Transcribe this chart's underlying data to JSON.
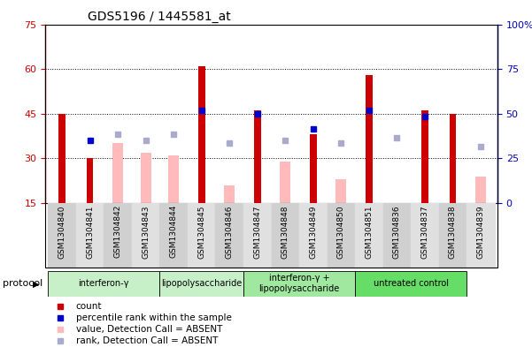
{
  "title": "GDS5196 / 1445581_at",
  "samples": [
    "GSM1304840",
    "GSM1304841",
    "GSM1304842",
    "GSM1304843",
    "GSM1304844",
    "GSM1304845",
    "GSM1304846",
    "GSM1304847",
    "GSM1304848",
    "GSM1304849",
    "GSM1304850",
    "GSM1304851",
    "GSM1304836",
    "GSM1304837",
    "GSM1304838",
    "GSM1304839"
  ],
  "red_bars": [
    45,
    30,
    null,
    null,
    null,
    61,
    null,
    46,
    null,
    38,
    null,
    58,
    null,
    46,
    45,
    null
  ],
  "pink_bars": [
    null,
    null,
    35,
    32,
    31,
    null,
    21,
    null,
    29,
    null,
    23,
    null,
    null,
    null,
    null,
    24
  ],
  "blue_squares": [
    null,
    36,
    null,
    null,
    null,
    46,
    null,
    45,
    null,
    40,
    null,
    46,
    null,
    44,
    null,
    null
  ],
  "lavender_squares": [
    null,
    null,
    38,
    36,
    38,
    null,
    35,
    null,
    36,
    null,
    35,
    null,
    37,
    null,
    null,
    34
  ],
  "ylim_left": [
    15,
    75
  ],
  "ylim_right": [
    0,
    100
  ],
  "yticks_left": [
    15,
    30,
    45,
    60,
    75
  ],
  "yticks_right": [
    0,
    25,
    50,
    75,
    100
  ],
  "ytick_right_labels": [
    "0",
    "25",
    "50",
    "75",
    "100%"
  ],
  "dotted_lines": [
    30,
    45,
    60
  ],
  "protocol_groups": [
    {
      "label": "interferon-γ",
      "start": 0,
      "end": 3,
      "color": "#c8f0c8"
    },
    {
      "label": "lipopolysaccharide",
      "start": 4,
      "end": 6,
      "color": "#c8f0c8"
    },
    {
      "label": "interferon-γ +\nlipopolysaccharide",
      "start": 7,
      "end": 10,
      "color": "#a0e8a0"
    },
    {
      "label": "untreated control",
      "start": 11,
      "end": 14,
      "color": "#66dd66"
    }
  ],
  "left_axis_color": "#cc0000",
  "right_axis_color": "#0000bb",
  "red_bar_width": 0.25,
  "pink_bar_width": 0.38,
  "square_size": 5
}
